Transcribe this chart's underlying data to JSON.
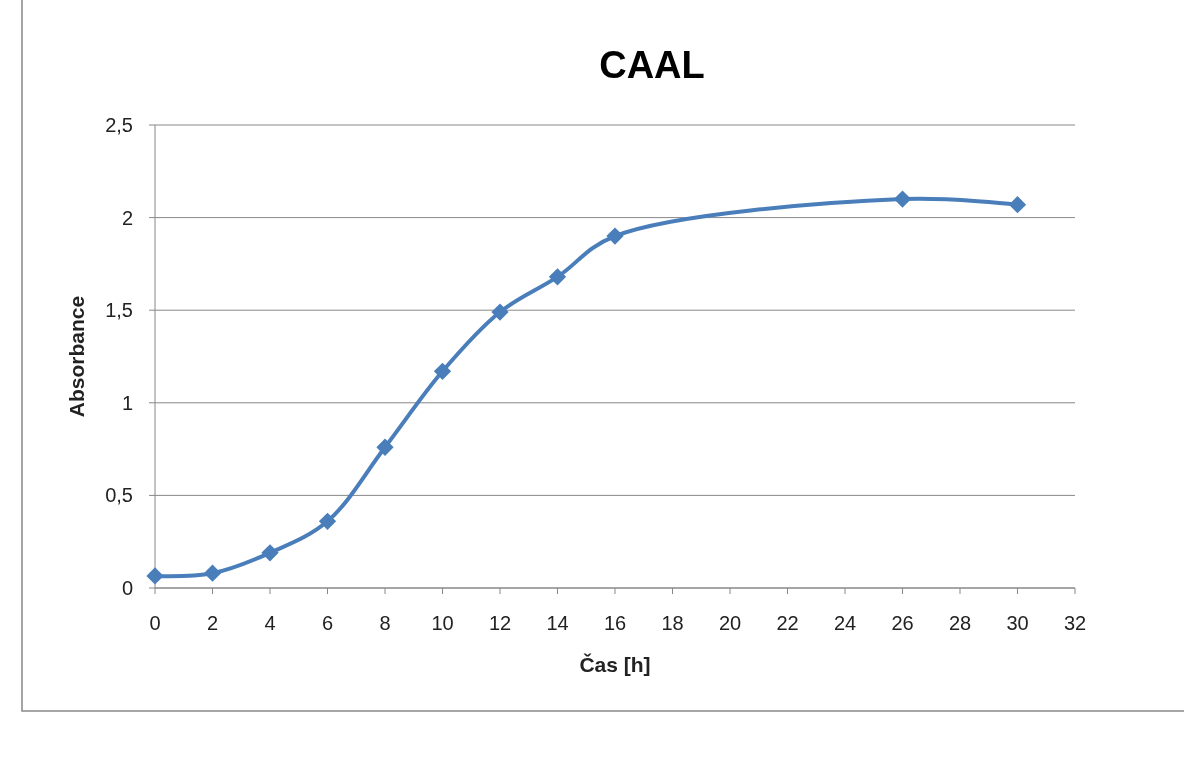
{
  "chart_data": {
    "type": "line",
    "title": "CAAL",
    "xlabel": "Čas [h]",
    "ylabel": "Absorbance",
    "x": [
      0,
      2,
      4,
      6,
      8,
      10,
      12,
      14,
      16,
      26,
      30
    ],
    "series": [
      {
        "color": "#4a7ebb",
        "values": [
          0.065,
          0.08,
          0.19,
          0.36,
          0.76,
          1.17,
          1.49,
          1.68,
          1.9,
          2.1,
          2.07
        ]
      }
    ],
    "xlim": [
      0,
      32
    ],
    "xticks": [
      0,
      2,
      4,
      6,
      8,
      10,
      12,
      14,
      16,
      18,
      20,
      22,
      24,
      26,
      28,
      30,
      32
    ],
    "ylim": [
      0,
      2.5
    ],
    "yticks": [
      0,
      {
        "value": 0.5,
        "label": "0,5"
      },
      1,
      {
        "value": 1.5,
        "label": "1,5"
      },
      2,
      {
        "value": 2.5,
        "label": "2,5"
      }
    ],
    "grid": "y",
    "marker": "diamond",
    "line_style": "solid"
  }
}
